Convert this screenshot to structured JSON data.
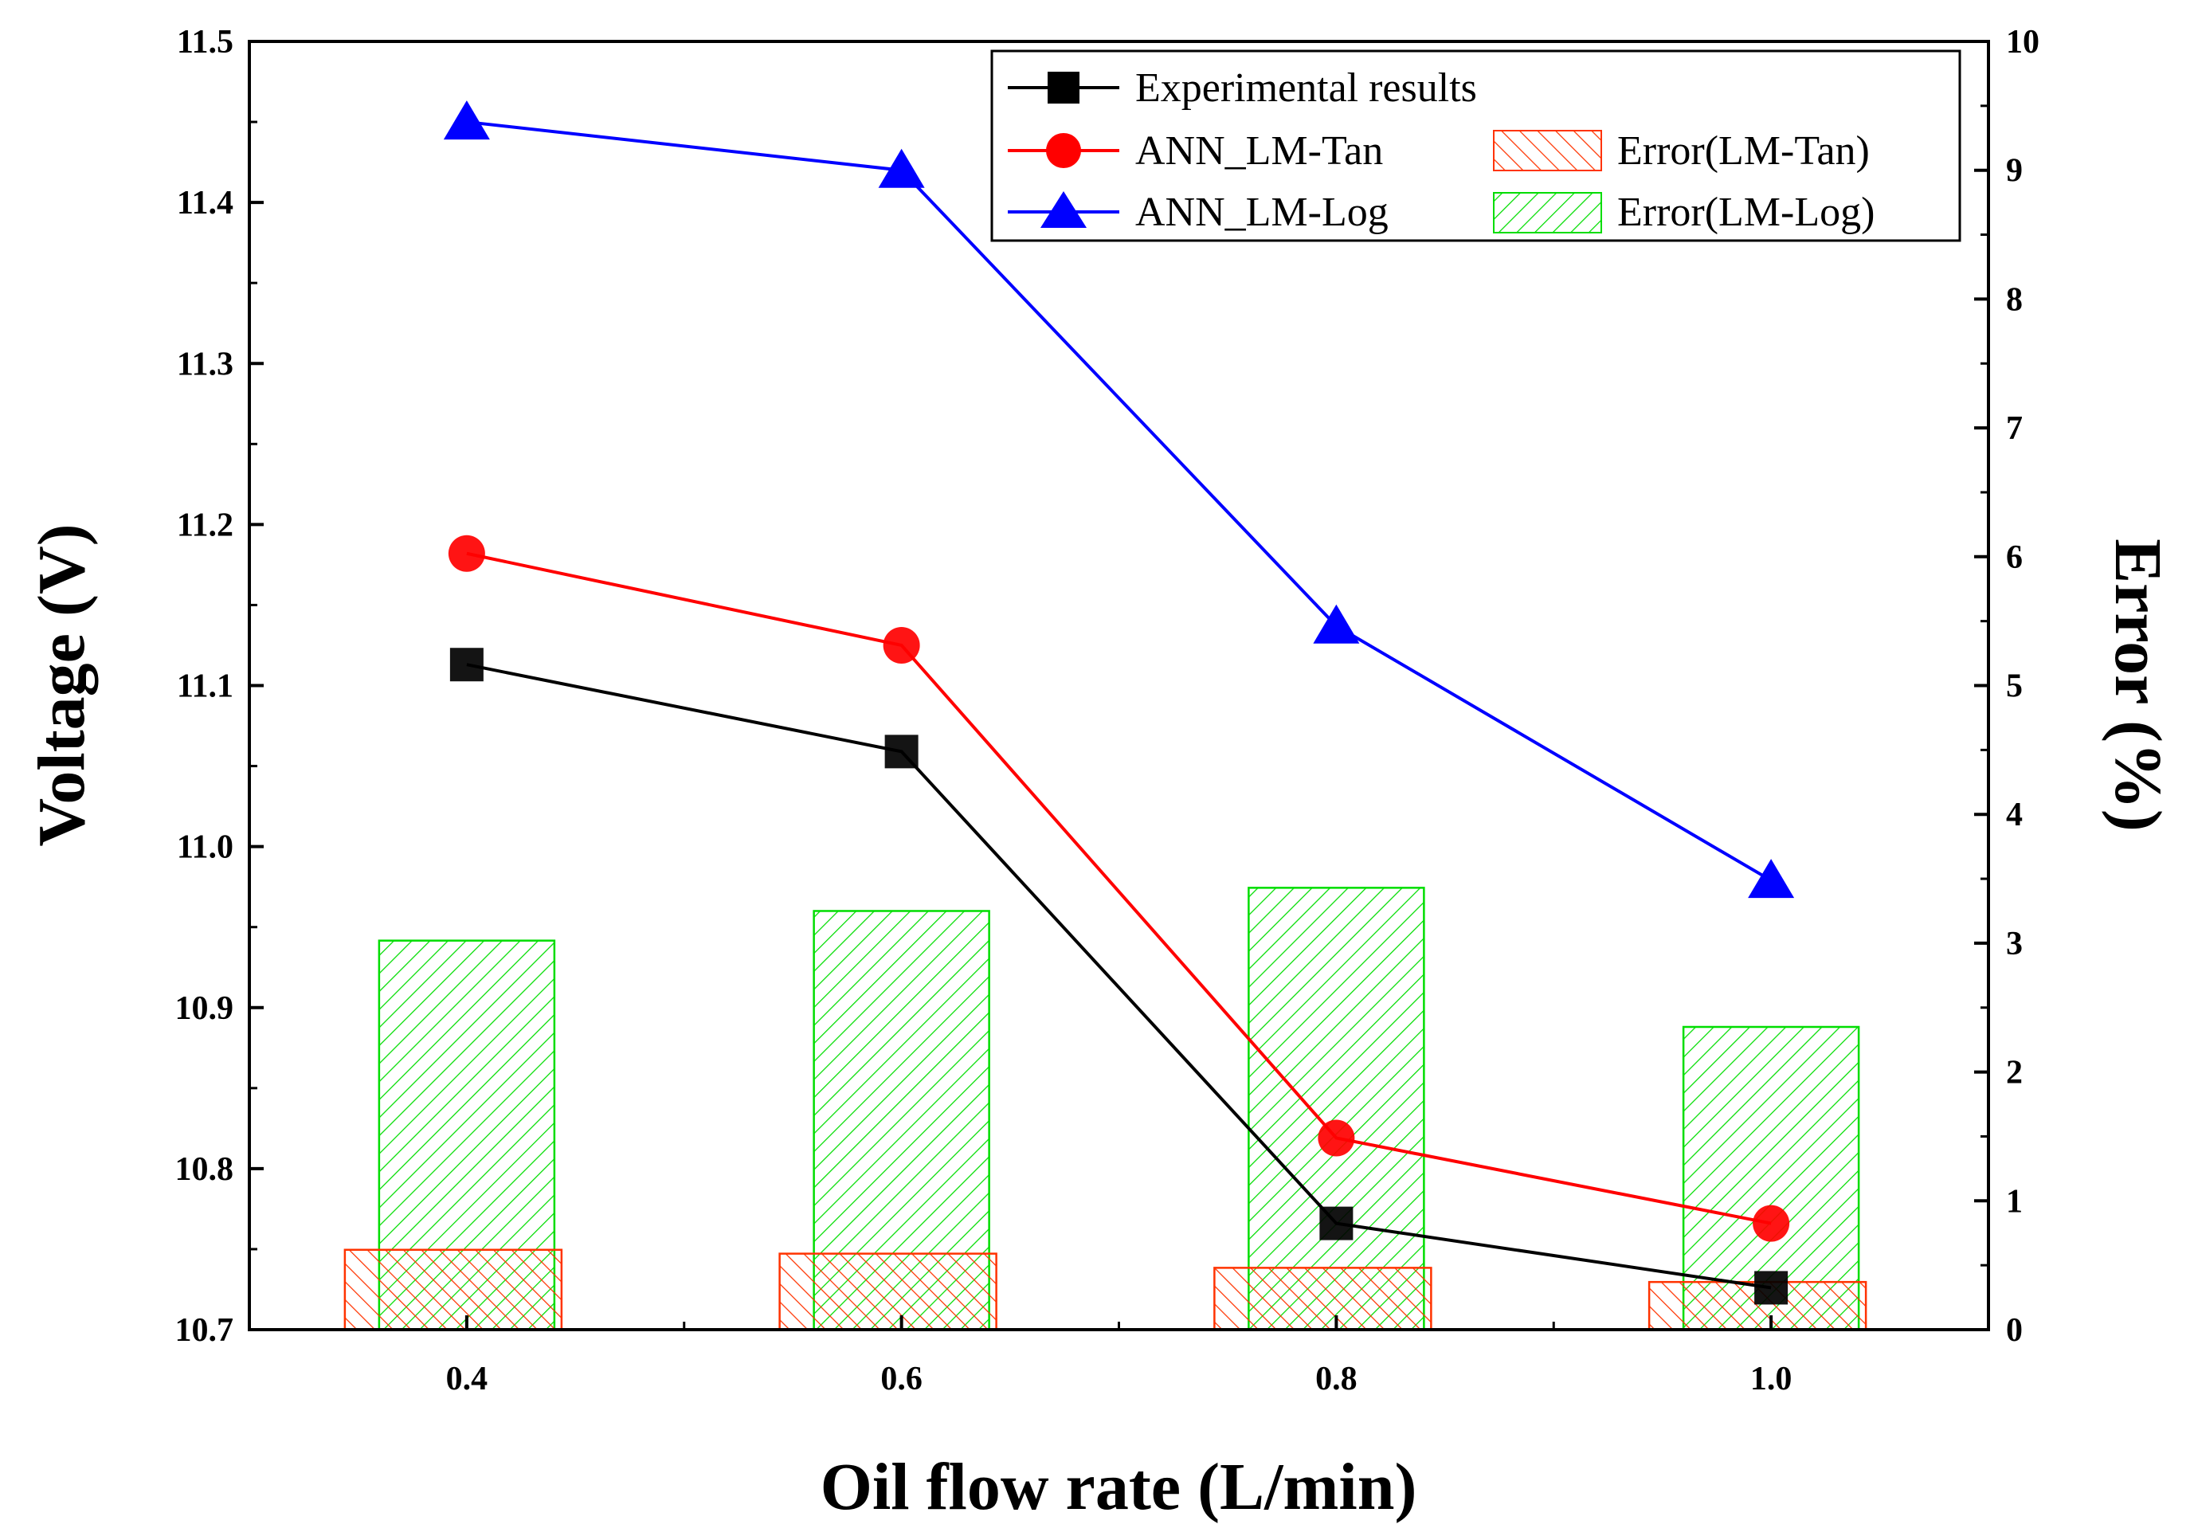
{
  "chart_data": {
    "type": "line+bar",
    "x": [
      0.4,
      0.6,
      0.8,
      1.0
    ],
    "x_tick_labels": [
      "0.4",
      "0.6",
      "0.8",
      "1.0"
    ],
    "xlabel": "Oil flow rate (L/min)",
    "xlim": [
      0.3,
      1.1
    ],
    "ylabel_left": "Voltage (V)",
    "ylim_left": [
      10.7,
      11.5
    ],
    "y_left_ticks": [
      "10.7",
      "10.8",
      "10.9",
      "11.0",
      "11.1",
      "11.2",
      "11.3",
      "11.4",
      "11.5"
    ],
    "ylabel_right": "Error (%)",
    "ylim_right": [
      0,
      10
    ],
    "y_right_ticks": [
      "0",
      "1",
      "2",
      "3",
      "4",
      "5",
      "6",
      "7",
      "8",
      "9",
      "10"
    ],
    "line_series": [
      {
        "name": "Experimental results",
        "color": "#000000",
        "marker": "square",
        "values": [
          11.113,
          11.059,
          10.766,
          10.726
        ]
      },
      {
        "name": "ANN_LM-Tan",
        "color": "#ff0000",
        "marker": "circle",
        "values": [
          11.182,
          11.125,
          10.819,
          10.766
        ]
      },
      {
        "name": "ANN_LM-Log",
        "color": "#0000ff",
        "marker": "triangle",
        "values": [
          11.45,
          11.42,
          11.137,
          10.979
        ]
      }
    ],
    "bar_series": [
      {
        "name": "Error(LM-Tan)",
        "color": "#ff3300",
        "hatch": "backslash",
        "values": [
          0.62,
          0.59,
          0.48,
          0.37
        ]
      },
      {
        "name": "Error(LM-Log)",
        "color": "#00dd00",
        "hatch": "slash",
        "values": [
          3.02,
          3.25,
          3.43,
          2.35
        ]
      }
    ],
    "legend_position": "top-right"
  }
}
